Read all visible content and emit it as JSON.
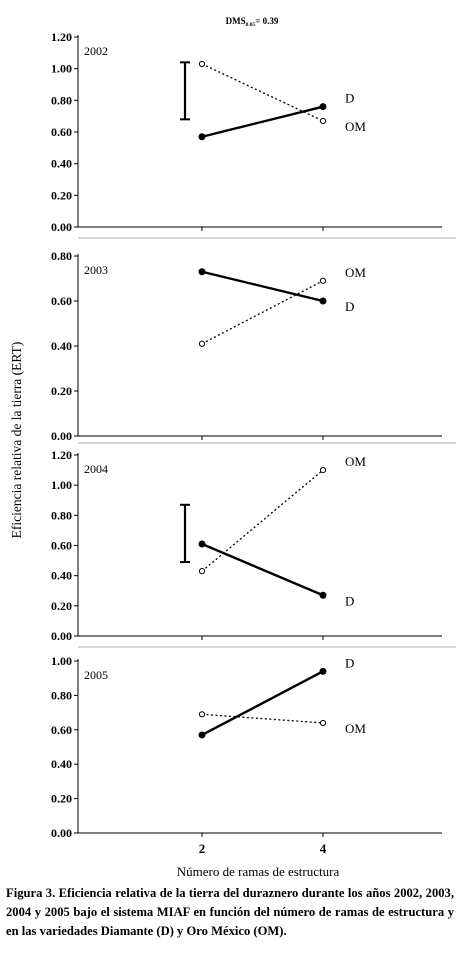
{
  "figure": {
    "dms_label": "DMS",
    "dms_subscript": "0.05",
    "dms_value": "= 0.39",
    "y_axis_label": "Eficiencia relativa de la tierra (ERT)",
    "x_axis_label": "Número de ramas de estructura",
    "caption": "Figura 3. Eficiencia relativa de la tierra del duraznero durante los años 2002, 2003, 2004 y 2005 bajo el sistema MIAF en función del número de ramas de estructura y en las variedades Diamante (D) y Oro México (OM).",
    "colors": {
      "axis": "#000000",
      "line": "#000000",
      "background": "#ffffff"
    }
  },
  "chart_data": [
    {
      "type": "line",
      "panel_label": "2002",
      "x": [
        2,
        4
      ],
      "x_tick_labels": [
        "2",
        "4"
      ],
      "ylim": [
        0,
        1.2
      ],
      "y_ticks": [
        "0.00",
        "0.20",
        "0.40",
        "0.60",
        "0.80",
        "1.00",
        "1.20"
      ],
      "series": [
        {
          "name": "D",
          "style": "solid",
          "marker": "filled-circle",
          "values": [
            0.57,
            0.76
          ]
        },
        {
          "name": "OM",
          "style": "dotted",
          "marker": "open-circle",
          "values": [
            1.03,
            0.67
          ]
        }
      ],
      "error_bar": {
        "low": 0.68,
        "high": 1.04
      }
    },
    {
      "type": "line",
      "panel_label": "2003",
      "x": [
        2,
        4
      ],
      "ylim": [
        0,
        0.8
      ],
      "y_ticks": [
        "0.00",
        "0.20",
        "0.40",
        "0.60",
        "0.80"
      ],
      "series": [
        {
          "name": "D",
          "style": "solid",
          "marker": "filled-circle",
          "values": [
            0.73,
            0.6
          ]
        },
        {
          "name": "OM",
          "style": "dotted",
          "marker": "open-circle",
          "values": [
            0.41,
            0.69
          ]
        }
      ]
    },
    {
      "type": "line",
      "panel_label": "2004",
      "x": [
        2,
        4
      ],
      "ylim": [
        0,
        1.2
      ],
      "y_ticks": [
        "0.00",
        "0.20",
        "0.40",
        "0.60",
        "0.80",
        "1.00",
        "1.20"
      ],
      "series": [
        {
          "name": "D",
          "style": "solid",
          "marker": "filled-circle",
          "values": [
            0.61,
            0.27
          ]
        },
        {
          "name": "OM",
          "style": "dotted",
          "marker": "open-circle",
          "values": [
            0.43,
            1.1
          ]
        }
      ],
      "error_bar": {
        "low": 0.49,
        "high": 0.87
      }
    },
    {
      "type": "line",
      "panel_label": "2005",
      "x": [
        2,
        4
      ],
      "ylim": [
        0,
        1.0
      ],
      "y_ticks": [
        "0.00",
        "0.20",
        "0.40",
        "0.60",
        "0.80",
        "1.00"
      ],
      "series": [
        {
          "name": "D",
          "style": "solid",
          "marker": "filled-circle",
          "values": [
            0.57,
            0.94
          ]
        },
        {
          "name": "OM",
          "style": "dotted",
          "marker": "open-circle",
          "values": [
            0.69,
            0.64
          ]
        }
      ]
    }
  ]
}
